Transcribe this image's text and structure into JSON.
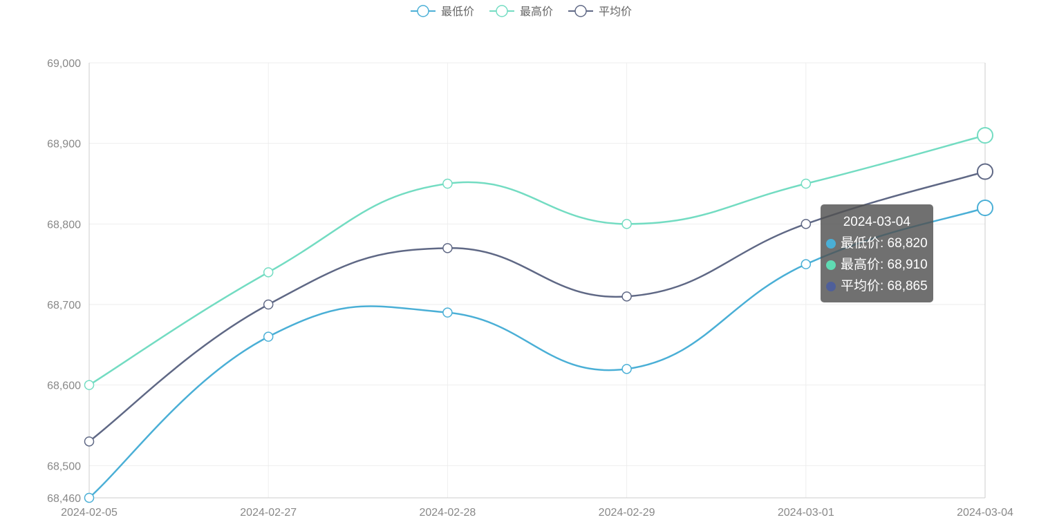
{
  "chart_data": {
    "type": "line",
    "smooth": true,
    "categories": [
      "2024-02-05",
      "2024-02-27",
      "2024-02-28",
      "2024-02-29",
      "2024-03-01",
      "2024-03-04"
    ],
    "series": [
      {
        "name": "最低价",
        "color": "#4aafd6",
        "values": [
          68460,
          68660,
          68690,
          68620,
          68750,
          68820
        ]
      },
      {
        "name": "最高价",
        "color": "#73dcc2",
        "values": [
          68600,
          68740,
          68850,
          68800,
          68850,
          68910
        ]
      },
      {
        "name": "平均价",
        "color": "#5f6885",
        "values": [
          68530,
          68700,
          68770,
          68710,
          68800,
          68865
        ]
      }
    ],
    "ylim": [
      68460,
      69000
    ],
    "yticks": [
      "68,460",
      "68,500",
      "68,600",
      "68,700",
      "68,800",
      "68,900",
      "69,000"
    ],
    "ytick_values": [
      68460,
      68500,
      68600,
      68700,
      68800,
      68900,
      69000
    ],
    "grid": true,
    "legend_position": "top-center"
  },
  "tooltip": {
    "title": "2024-03-04",
    "rows": [
      {
        "label": "最低价: 68,820",
        "color": "#4aafd6"
      },
      {
        "label": "最高价: 68,910",
        "color": "#5fdbb3"
      },
      {
        "label": "平均价: 68,865",
        "color": "#4f5f9a"
      }
    ]
  }
}
